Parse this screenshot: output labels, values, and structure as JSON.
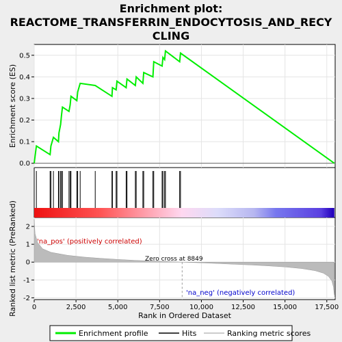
{
  "chart_data": {
    "type": "line",
    "title_lines": [
      "Enrichment plot:",
      "REACTOME_TRANSFERRIN_ENDOCYTOSIS_AND_RECY",
      "CLING"
    ],
    "xlabel": "Rank in Ordered Dataset",
    "ylabel_top": "Enrichment score (ES)",
    "ylabel_bottom": "Ranked list metric (PreRanked)",
    "xlim": [
      0,
      18000
    ],
    "x_ticks": [
      0,
      2500,
      5000,
      7500,
      10000,
      12500,
      15000,
      17500
    ],
    "x_tick_labels": [
      "0",
      "2,500",
      "5,000",
      "7,500",
      "10,000",
      "12,500",
      "15,000",
      "17,500"
    ],
    "es_ylim": [
      -0.02,
      0.55
    ],
    "es_ticks": [
      0.0,
      0.1,
      0.2,
      0.3,
      0.4,
      0.5
    ],
    "es_tick_labels": [
      "0.0",
      "0.1",
      "0.2",
      "0.3",
      "0.4",
      "0.5"
    ],
    "metric_ylim": [
      -2.1,
      2.5
    ],
    "metric_ticks": [
      -2,
      -1,
      0,
      1,
      2
    ],
    "metric_tick_labels": [
      "-2",
      "-1",
      "0",
      "1",
      "2"
    ],
    "series": [
      {
        "name": "Enrichment profile",
        "color": "#00ee00",
        "x": [
          0,
          130,
          950,
          1000,
          1150,
          1450,
          1480,
          1580,
          1630,
          1690,
          2080,
          2150,
          2200,
          2550,
          2600,
          2750,
          3650,
          4650,
          4680,
          4900,
          4950,
          5500,
          5550,
          6050,
          6100,
          6500,
          6550,
          7100,
          7150,
          7650,
          7700,
          7800,
          7850,
          8700,
          8750,
          17950
        ],
        "y": [
          0.0,
          0.08,
          0.04,
          0.08,
          0.12,
          0.1,
          0.14,
          0.18,
          0.22,
          0.26,
          0.24,
          0.27,
          0.31,
          0.29,
          0.33,
          0.37,
          0.36,
          0.31,
          0.35,
          0.34,
          0.38,
          0.35,
          0.39,
          0.36,
          0.4,
          0.37,
          0.42,
          0.4,
          0.47,
          0.45,
          0.49,
          0.48,
          0.52,
          0.47,
          0.51,
          0.0
        ]
      }
    ],
    "hits": [
      130,
      950,
      1000,
      1150,
      1450,
      1480,
      1580,
      1630,
      1690,
      2080,
      2150,
      2200,
      2550,
      2600,
      2750,
      3650,
      4650,
      4680,
      4900,
      4950,
      5500,
      5550,
      6050,
      6100,
      6500,
      6550,
      7100,
      7150,
      7650,
      7700,
      7800,
      7850,
      8700,
      8750
    ],
    "metric_profile": {
      "x": [
        0,
        50,
        200,
        500,
        1000,
        2000,
        3000,
        4000,
        5000,
        6000,
        7000,
        8000,
        8849,
        10000,
        11000,
        12000,
        13000,
        14000,
        15000,
        16000,
        16800,
        17300,
        17600,
        17800,
        17900,
        17950
      ],
      "y": [
        2.4,
        1.6,
        1.1,
        0.75,
        0.55,
        0.38,
        0.28,
        0.21,
        0.15,
        0.1,
        0.06,
        0.03,
        0.0,
        -0.04,
        -0.08,
        -0.12,
        -0.16,
        -0.21,
        -0.27,
        -0.36,
        -0.48,
        -0.62,
        -0.8,
        -1.05,
        -1.4,
        -1.85
      ]
    },
    "zero_cross": 8849,
    "annotations": {
      "pos": "'na_pos' (positively correlated)",
      "neg": "'na_neg' (negatively correlated)",
      "zero": "Zero cross at 8849"
    },
    "legend": {
      "placement": "bottom",
      "items": [
        {
          "label": "Enrichment profile",
          "color": "#00ee00"
        },
        {
          "label": "Hits",
          "color": "#000000"
        },
        {
          "label": "Ranking metric scores",
          "color": "#bbbbbb"
        }
      ]
    },
    "heatmap_stops": [
      {
        "x": 0,
        "color": "#ee1111"
      },
      {
        "x": 4000,
        "color": "#ff5555"
      },
      {
        "x": 6500,
        "color": "#ff9aa6"
      },
      {
        "x": 8849,
        "color": "#ffd8f0"
      },
      {
        "x": 11000,
        "color": "#dcdcfa"
      },
      {
        "x": 13200,
        "color": "#b6b6f0"
      },
      {
        "x": 14500,
        "color": "#7777ee"
      },
      {
        "x": 17200,
        "color": "#5a3fe0"
      },
      {
        "x": 17950,
        "color": "#2200bb"
      }
    ],
    "grid": true
  }
}
